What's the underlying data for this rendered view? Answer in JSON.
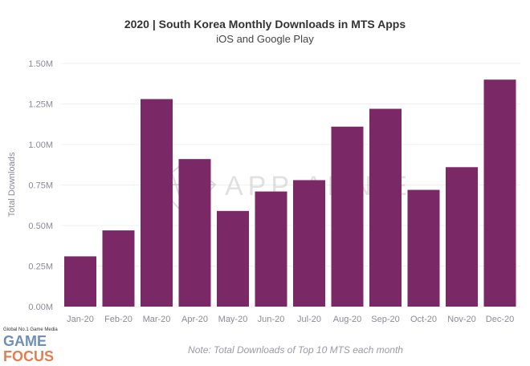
{
  "chart_data": {
    "type": "bar",
    "title": "2020 | South Korea Monthly Downloads in MTS Apps",
    "subtitle": "iOS and Google Play",
    "xlabel": "",
    "ylabel": "Total Downloads",
    "categories": [
      "Jan-20",
      "Feb-20",
      "Mar-20",
      "Apr-20",
      "May-20",
      "Jun-20",
      "Jul-20",
      "Aug-20",
      "Sep-20",
      "Oct-20",
      "Nov-20",
      "Dec-20"
    ],
    "values": [
      0.31,
      0.47,
      1.28,
      0.91,
      0.59,
      0.71,
      0.78,
      1.11,
      1.22,
      0.72,
      0.86,
      1.4
    ],
    "units": "M",
    "ylim": [
      0,
      1.5
    ],
    "yticks": [
      0,
      0.25,
      0.5,
      0.75,
      1.0,
      1.25,
      1.5
    ],
    "ytick_labels": [
      "0.00M",
      "0.25M",
      "0.50M",
      "0.75M",
      "1.00M",
      "1.25M",
      "1.50M"
    ],
    "grid": true,
    "bar_color": "#7b2866",
    "note": "Note: Total Downloads of Top 10 MTS each month"
  },
  "watermarks": {
    "app_annie": "APP ANNIE",
    "game_focus_tagline": "Global No.1 Game Media",
    "game_focus_top": "GAME",
    "game_focus_bottom": "FOCUS"
  }
}
